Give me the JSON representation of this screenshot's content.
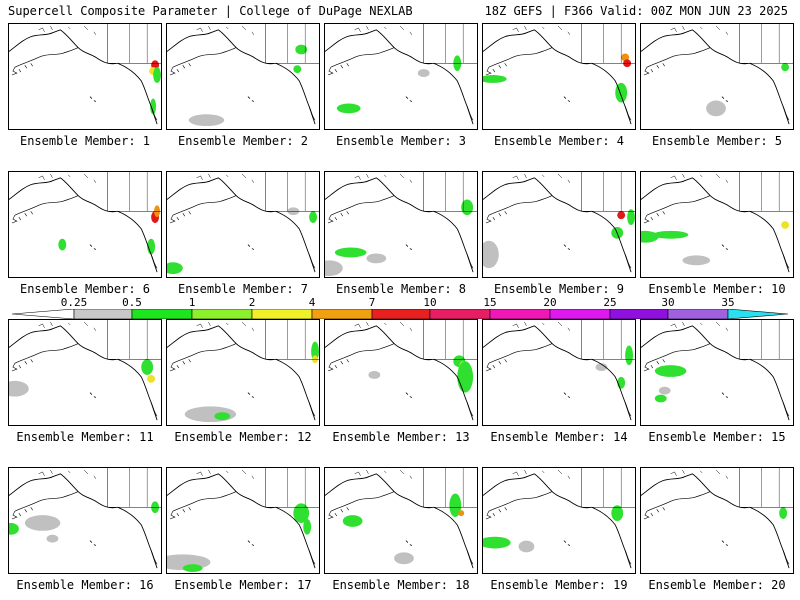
{
  "header": {
    "title_left": "Supercell Composite Parameter | College of DuPage NEXLAB",
    "title_right": "18Z GEFS | F366 Valid: 00Z MON JUN 23 2025"
  },
  "member_label_prefix": "Ensemble Member:",
  "members": [
    "1",
    "2",
    "3",
    "4",
    "5",
    "6",
    "7",
    "8",
    "9",
    "10",
    "11",
    "12",
    "13",
    "14",
    "15",
    "16",
    "17",
    "18",
    "19",
    "20"
  ],
  "colorbar": {
    "labels": [
      "0.25",
      "0.5",
      "1",
      "2",
      "4",
      "7",
      "10",
      "15",
      "20",
      "25",
      "30",
      "35"
    ],
    "colors": [
      "#c8c8c8",
      "#1ee61e",
      "#8cf02c",
      "#f0f028",
      "#f0a010",
      "#e82020",
      "#e81e64",
      "#f018b4",
      "#e018f0",
      "#9010e0",
      "#a060e0",
      "#28e0f0"
    ]
  },
  "palette": {
    "gray": "#c0c0c0",
    "green": "#30e030",
    "lime": "#9ef02c",
    "yellow": "#f0e028",
    "orange": "#f09010",
    "red": "#e01818"
  }
}
